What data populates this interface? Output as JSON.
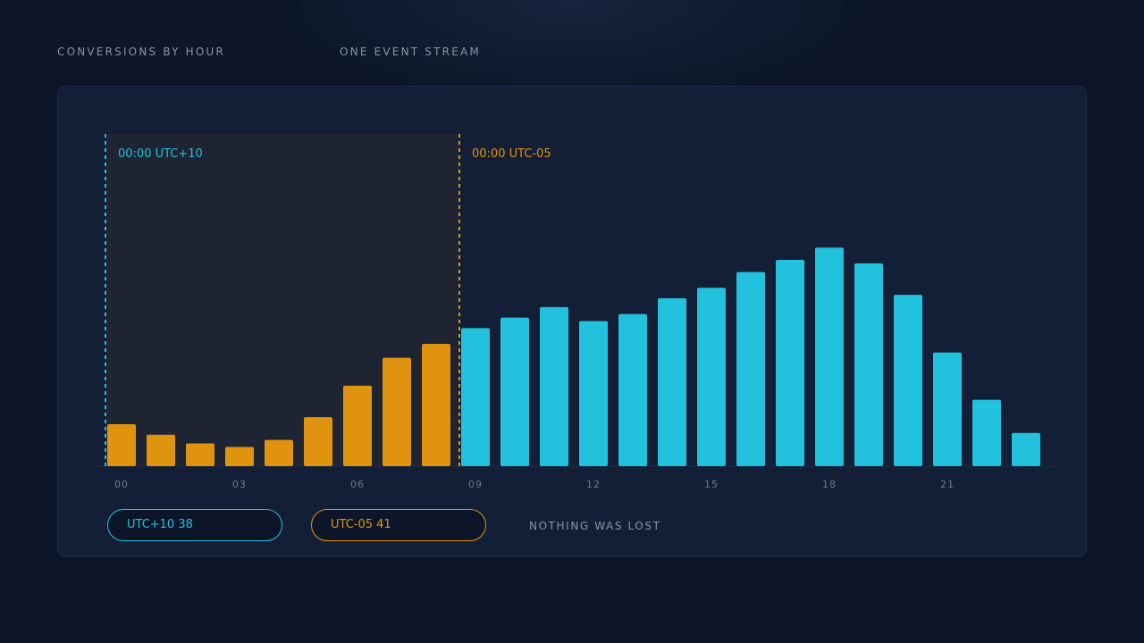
{
  "header": {
    "title": "CONVERSIONS BY HOUR",
    "subtitle": "ONE EVENT STREAM"
  },
  "colors": {
    "cyan": "#22c1de",
    "orange": "#e0930f",
    "window_shade": "#1f2433"
  },
  "chart_data": {
    "type": "bar",
    "categories": [
      "00",
      "01",
      "02",
      "03",
      "04",
      "05",
      "06",
      "07",
      "08",
      "09",
      "10",
      "11",
      "12",
      "13",
      "14",
      "15",
      "16",
      "17",
      "18",
      "19",
      "20",
      "21",
      "22",
      "23"
    ],
    "x_tick_labels": [
      "00",
      "03",
      "06",
      "09",
      "12",
      "15",
      "18",
      "21"
    ],
    "values": [
      12,
      9,
      6.5,
      5.5,
      7.5,
      14,
      23,
      31,
      35,
      39.5,
      42.5,
      45.5,
      41.5,
      43.5,
      48,
      51,
      55.5,
      59,
      62.5,
      58,
      49,
      32.5,
      19,
      9.5
    ],
    "series_assignment": [
      "orange",
      "orange",
      "orange",
      "orange",
      "orange",
      "orange",
      "orange",
      "orange",
      "orange",
      "cyan",
      "cyan",
      "cyan",
      "cyan",
      "cyan",
      "cyan",
      "cyan",
      "cyan",
      "cyan",
      "cyan",
      "cyan",
      "cyan",
      "cyan",
      "cyan",
      "cyan"
    ],
    "ylim": [
      0,
      95
    ],
    "xlabel": "",
    "ylabel": "",
    "grid": false,
    "markers": [
      {
        "label": "00:00 UTC+10",
        "at_category": 0,
        "color": "cyan"
      },
      {
        "label": "00:00 UTC-05",
        "at_category": 9,
        "color": "orange"
      }
    ],
    "shaded_window": {
      "from_category": 0,
      "to_category": 9
    }
  },
  "legend": {
    "pill_utc10": "UTC+10 38",
    "pill_utc05": "UTC-05 41",
    "note": "NOTHING WAS LOST"
  }
}
